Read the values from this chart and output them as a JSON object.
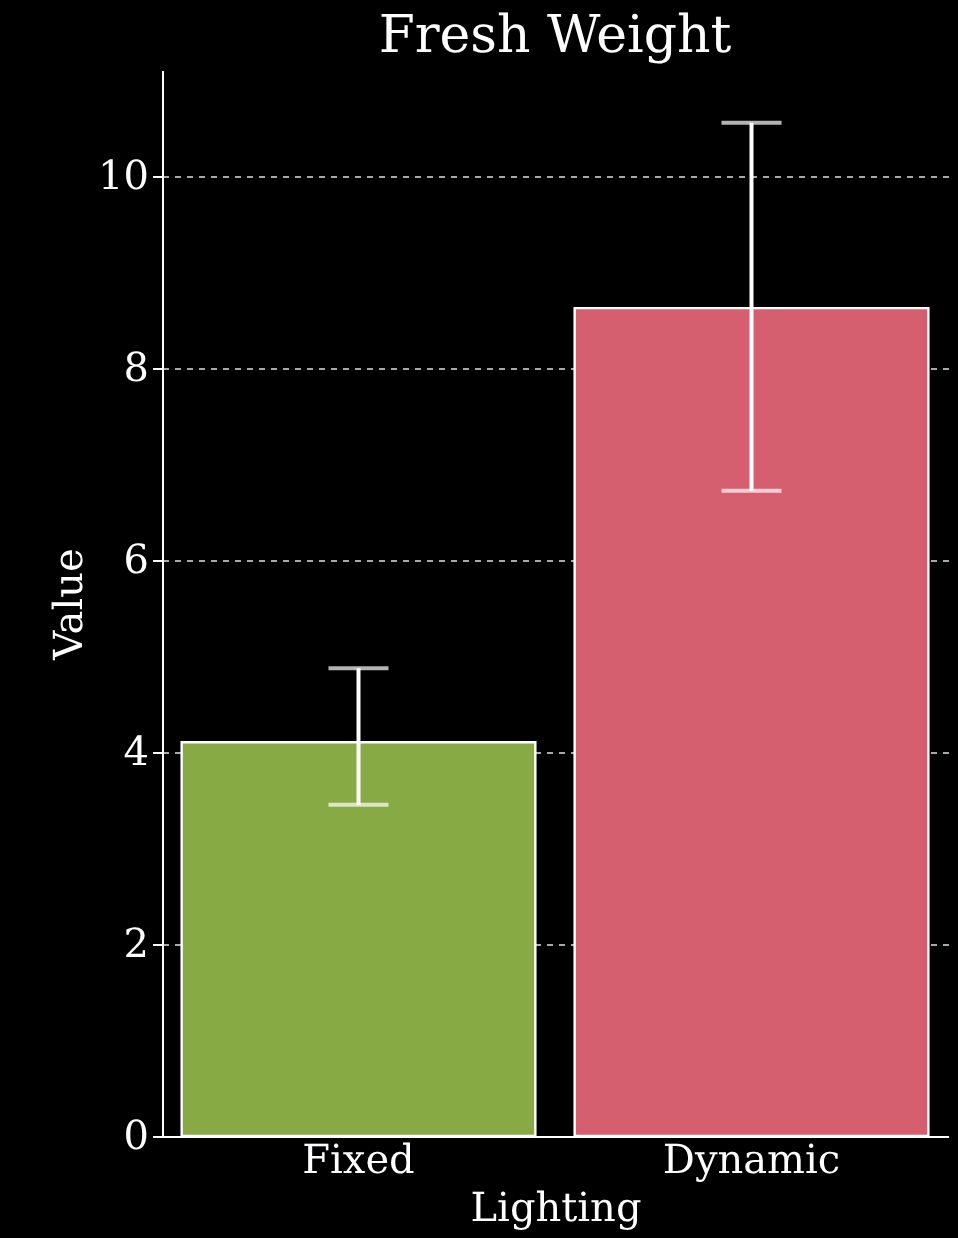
{
  "chart_data": {
    "type": "bar",
    "title": "Fresh Weight",
    "xlabel": "Lighting",
    "ylabel": "Value",
    "categories": [
      "Fixed",
      "Dynamic"
    ],
    "values": [
      4.1,
      8.62
    ],
    "colors": [
      "#88aa44",
      "#d65f6f"
    ],
    "errors": [
      [
        3.45,
        4.87
      ],
      [
        6.72,
        10.55
      ]
    ],
    "ylim": [
      0,
      11.1
    ],
    "yticks": [
      0,
      2,
      4,
      6,
      8,
      10
    ],
    "grid": "y"
  }
}
